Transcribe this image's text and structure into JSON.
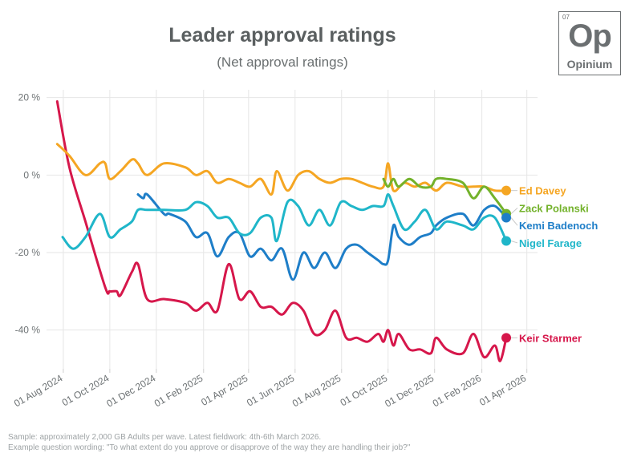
{
  "brand": {
    "number": "07",
    "symbol": "Op",
    "name": "Opinium",
    "color": "#6b6f71"
  },
  "footer": {
    "line1": "Sample: approximately 2,000 GB Adults per wave. Latest fieldwork: 4th-6th March 2026.",
    "line2": "Example question wording: \"To what extent do you approve or disapprove of the way they are handling their job?\""
  },
  "chart_data": {
    "type": "line",
    "title": "Leader approval ratings",
    "subtitle": "(Net approval ratings)",
    "xlabel": "",
    "ylabel": "",
    "ylim": [
      -50,
      22
    ],
    "xlim": [
      "2024-07-10",
      "2026-04-15"
    ],
    "yticks": [
      20,
      0,
      -20,
      -40
    ],
    "ytick_labels": [
      "20 %",
      "0 %",
      "-20 %",
      "-40 %"
    ],
    "xticks": [
      "2024-08-01",
      "2024-10-01",
      "2024-12-01",
      "2025-02-01",
      "2025-04-01",
      "2025-06-01",
      "2025-08-01",
      "2025-10-01",
      "2025-12-01",
      "2026-02-01",
      "2026-04-01"
    ],
    "xtick_labels": [
      "01 Aug 2024",
      "01 Oct 2024",
      "01 Dec 2024",
      "01 Feb 2025",
      "01 Apr 2025",
      "01 Jun 2025",
      "01 Aug 2025",
      "01 Oct 2025",
      "01 Dec 2025",
      "01 Feb 2026",
      "01 Apr 2026"
    ],
    "grid": true,
    "legend": "end-of-line labels",
    "series": [
      {
        "name": "Keir Starmer",
        "color": "#d6174b",
        "points": [
          [
            "2024-07-24",
            19
          ],
          [
            "2024-08-09",
            2
          ],
          [
            "2024-08-30",
            -12
          ],
          [
            "2024-09-25",
            -29
          ],
          [
            "2024-10-01",
            -30
          ],
          [
            "2024-10-10",
            -30
          ],
          [
            "2024-10-15",
            -31
          ],
          [
            "2024-10-30",
            -25
          ],
          [
            "2024-11-07",
            -23
          ],
          [
            "2024-11-19",
            -32
          ],
          [
            "2024-12-11",
            -32
          ],
          [
            "2025-01-08",
            -33
          ],
          [
            "2025-01-22",
            -35
          ],
          [
            "2025-02-06",
            -33
          ],
          [
            "2025-02-19",
            -35
          ],
          [
            "2025-03-06",
            -23
          ],
          [
            "2025-03-20",
            -32
          ],
          [
            "2025-04-03",
            -30
          ],
          [
            "2025-04-17",
            -34
          ],
          [
            "2025-05-01",
            -34
          ],
          [
            "2025-05-15",
            -36
          ],
          [
            "2025-05-29",
            -33
          ],
          [
            "2025-06-12",
            -35
          ],
          [
            "2025-06-26",
            -41
          ],
          [
            "2025-07-10",
            -40
          ],
          [
            "2025-07-24",
            -35
          ],
          [
            "2025-08-07",
            -42
          ],
          [
            "2025-08-21",
            -42
          ],
          [
            "2025-09-04",
            -43
          ],
          [
            "2025-09-18",
            -41
          ],
          [
            "2025-09-25",
            -43
          ],
          [
            "2025-10-01",
            -40
          ],
          [
            "2025-10-08",
            -44
          ],
          [
            "2025-10-15",
            -41
          ],
          [
            "2025-10-29",
            -45
          ],
          [
            "2025-11-12",
            -45
          ],
          [
            "2025-11-26",
            -46
          ],
          [
            "2025-12-03",
            -42
          ],
          [
            "2025-12-17",
            -45
          ],
          [
            "2026-01-07",
            -46
          ],
          [
            "2026-01-21",
            -41
          ],
          [
            "2026-02-04",
            -47
          ],
          [
            "2026-02-18",
            -44
          ],
          [
            "2026-02-25",
            -48
          ],
          [
            "2026-03-05",
            -42
          ]
        ]
      },
      {
        "name": "Ed Davey",
        "color": "#f5a623",
        "points": [
          [
            "2024-07-24",
            8
          ],
          [
            "2024-08-09",
            5
          ],
          [
            "2024-08-30",
            0
          ],
          [
            "2024-09-18",
            3
          ],
          [
            "2024-09-25",
            3
          ],
          [
            "2024-10-01",
            -1
          ],
          [
            "2024-10-15",
            1
          ],
          [
            "2024-10-30",
            4
          ],
          [
            "2024-11-07",
            3
          ],
          [
            "2024-11-19",
            0
          ],
          [
            "2024-12-11",
            3
          ],
          [
            "2025-01-08",
            2
          ],
          [
            "2025-01-22",
            0
          ],
          [
            "2025-02-06",
            1
          ],
          [
            "2025-02-19",
            -2
          ],
          [
            "2025-03-06",
            -1
          ],
          [
            "2025-03-20",
            -2
          ],
          [
            "2025-04-03",
            -3
          ],
          [
            "2025-04-17",
            -1
          ],
          [
            "2025-05-01",
            -5
          ],
          [
            "2025-05-08",
            1
          ],
          [
            "2025-05-22",
            -4
          ],
          [
            "2025-06-05",
            0
          ],
          [
            "2025-06-19",
            1
          ],
          [
            "2025-07-03",
            -1
          ],
          [
            "2025-07-17",
            -2
          ],
          [
            "2025-07-31",
            -1
          ],
          [
            "2025-08-14",
            -1
          ],
          [
            "2025-08-28",
            -2
          ],
          [
            "2025-09-11",
            -3
          ],
          [
            "2025-09-25",
            -3
          ],
          [
            "2025-10-01",
            3
          ],
          [
            "2025-10-08",
            -4
          ],
          [
            "2025-10-22",
            -2
          ],
          [
            "2025-11-05",
            -3
          ],
          [
            "2025-11-19",
            -2
          ],
          [
            "2025-12-03",
            -4
          ],
          [
            "2025-12-17",
            -2
          ],
          [
            "2026-01-07",
            -3
          ],
          [
            "2026-01-21",
            -3
          ],
          [
            "2026-02-04",
            -3
          ],
          [
            "2026-02-18",
            -4
          ],
          [
            "2026-03-05",
            -4
          ]
        ]
      },
      {
        "name": "Zack Polanski",
        "color": "#73b22b",
        "points": [
          [
            "2025-09-25",
            -1
          ],
          [
            "2025-10-01",
            -3
          ],
          [
            "2025-10-08",
            -1
          ],
          [
            "2025-10-15",
            -3
          ],
          [
            "2025-10-29",
            -1
          ],
          [
            "2025-11-12",
            -3
          ],
          [
            "2025-11-26",
            -3
          ],
          [
            "2025-12-03",
            -1
          ],
          [
            "2025-12-17",
            -1
          ],
          [
            "2026-01-07",
            -2
          ],
          [
            "2026-01-21",
            -6
          ],
          [
            "2026-02-04",
            -3
          ],
          [
            "2026-02-18",
            -6
          ],
          [
            "2026-03-05",
            -10
          ]
        ]
      },
      {
        "name": "Kemi Badenoch",
        "color": "#1e7ec8",
        "points": [
          [
            "2024-11-07",
            -5
          ],
          [
            "2024-11-14",
            -6
          ],
          [
            "2024-11-19",
            -5
          ],
          [
            "2024-12-11",
            -10
          ],
          [
            "2024-12-18",
            -10
          ],
          [
            "2025-01-08",
            -12
          ],
          [
            "2025-01-22",
            -16
          ],
          [
            "2025-02-06",
            -15
          ],
          [
            "2025-02-19",
            -21
          ],
          [
            "2025-03-06",
            -16
          ],
          [
            "2025-03-20",
            -15
          ],
          [
            "2025-04-03",
            -21
          ],
          [
            "2025-04-17",
            -19
          ],
          [
            "2025-05-01",
            -22
          ],
          [
            "2025-05-15",
            -19
          ],
          [
            "2025-05-29",
            -27
          ],
          [
            "2025-06-12",
            -20
          ],
          [
            "2025-06-26",
            -24
          ],
          [
            "2025-07-10",
            -20
          ],
          [
            "2025-07-24",
            -24
          ],
          [
            "2025-08-07",
            -19
          ],
          [
            "2025-08-21",
            -18
          ],
          [
            "2025-09-04",
            -20
          ],
          [
            "2025-09-18",
            -22
          ],
          [
            "2025-09-25",
            -23
          ],
          [
            "2025-10-01",
            -22
          ],
          [
            "2025-10-08",
            -13
          ],
          [
            "2025-10-15",
            -16
          ],
          [
            "2025-10-29",
            -18
          ],
          [
            "2025-11-12",
            -16
          ],
          [
            "2025-11-26",
            -15
          ],
          [
            "2025-12-03",
            -13
          ],
          [
            "2025-12-17",
            -11
          ],
          [
            "2026-01-07",
            -10
          ],
          [
            "2026-01-21",
            -13
          ],
          [
            "2026-02-04",
            -9
          ],
          [
            "2026-02-18",
            -8
          ],
          [
            "2026-03-05",
            -11
          ]
        ]
      },
      {
        "name": "Nigel Farage",
        "color": "#1fb6c9",
        "points": [
          [
            "2024-07-31",
            -16
          ],
          [
            "2024-08-14",
            -19
          ],
          [
            "2024-08-30",
            -16
          ],
          [
            "2024-09-18",
            -10
          ],
          [
            "2024-10-01",
            -16
          ],
          [
            "2024-10-15",
            -14
          ],
          [
            "2024-10-30",
            -12
          ],
          [
            "2024-11-07",
            -9
          ],
          [
            "2024-11-19",
            -9
          ],
          [
            "2024-12-11",
            -9
          ],
          [
            "2025-01-08",
            -9
          ],
          [
            "2025-01-22",
            -7
          ],
          [
            "2025-02-06",
            -8
          ],
          [
            "2025-02-19",
            -11
          ],
          [
            "2025-03-06",
            -11
          ],
          [
            "2025-03-20",
            -15
          ],
          [
            "2025-04-03",
            -15
          ],
          [
            "2025-04-17",
            -11
          ],
          [
            "2025-05-01",
            -11
          ],
          [
            "2025-05-08",
            -17
          ],
          [
            "2025-05-22",
            -7
          ],
          [
            "2025-06-05",
            -8
          ],
          [
            "2025-06-19",
            -13
          ],
          [
            "2025-07-03",
            -9
          ],
          [
            "2025-07-17",
            -13
          ],
          [
            "2025-07-31",
            -7
          ],
          [
            "2025-08-14",
            -8
          ],
          [
            "2025-08-28",
            -9
          ],
          [
            "2025-09-11",
            -8
          ],
          [
            "2025-09-25",
            -8
          ],
          [
            "2025-10-01",
            -5
          ],
          [
            "2025-10-08",
            -8
          ],
          [
            "2025-10-22",
            -14
          ],
          [
            "2025-11-05",
            -12
          ],
          [
            "2025-11-19",
            -9
          ],
          [
            "2025-12-03",
            -14
          ],
          [
            "2025-12-17",
            -12
          ],
          [
            "2026-01-07",
            -13
          ],
          [
            "2026-01-21",
            -14
          ],
          [
            "2026-02-04",
            -11
          ],
          [
            "2026-02-18",
            -11
          ],
          [
            "2026-03-05",
            -17
          ]
        ]
      }
    ],
    "end_labels": [
      {
        "series": "Ed Davey",
        "text": "Ed Davey",
        "y": -4
      },
      {
        "series": "Zack Polanski",
        "text": "Zack Polanski",
        "y": -8.5
      },
      {
        "series": "Kemi Badenoch",
        "text": "Kemi Badenoch",
        "y": -13
      },
      {
        "series": "Nigel Farage",
        "text": "Nigel Farage",
        "y": -17.5
      },
      {
        "series": "Keir Starmer",
        "text": "Keir Starmer",
        "y": -42
      }
    ]
  }
}
